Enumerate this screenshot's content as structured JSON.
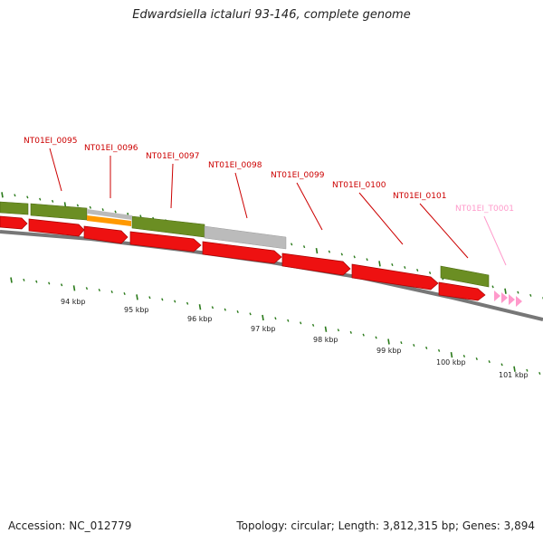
{
  "title": "Edwardsiella ictaluri 93-146, complete genome",
  "footer": {
    "accession": "Accession: NC_012779",
    "summary": "Topology: circular; Length: 3,812,315 bp; Genes: 3,894"
  },
  "scale_labels": [
    "94 kbp",
    "95 kbp",
    "96 kbp",
    "97 kbp",
    "98 kbp",
    "99 kbp",
    "100 kbp",
    "101 kbp"
  ],
  "gene_labels": [
    "NT01EI_0095",
    "NT01EI_0096",
    "NT01EI_0097",
    "NT01EI_0098",
    "NT01EI_0099",
    "NT01EI_0100",
    "NT01EI_0101",
    "NT01EI_T0001"
  ],
  "colors": {
    "cds": "#ee1111",
    "gene_green": "#6b8e23",
    "pseudo_orange": "#ff9900",
    "gray": "#bbbbbb",
    "trna_pink": "#ff9acb",
    "label_red": "#cc0000",
    "tick_green": "#2a7a1a",
    "backbone": "#777777"
  }
}
